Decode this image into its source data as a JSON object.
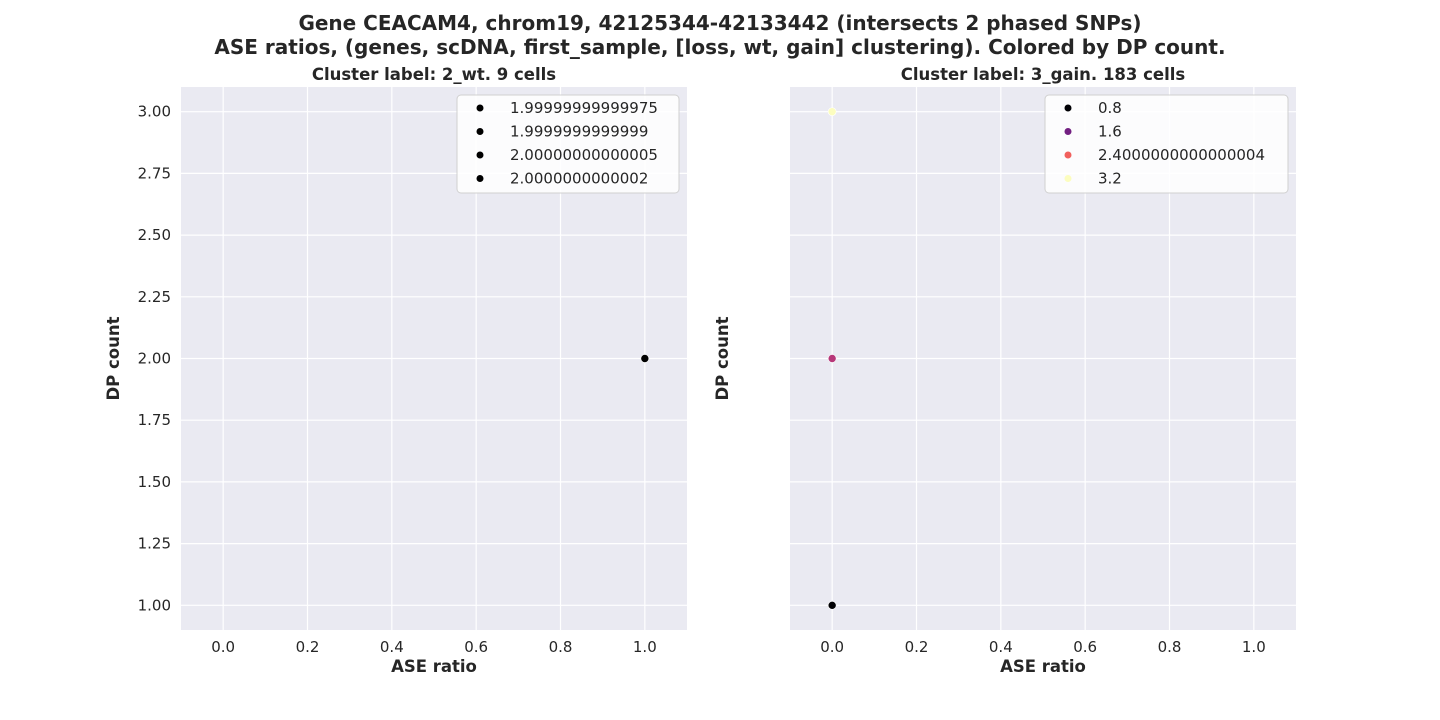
{
  "figure": {
    "title_line1": "Gene CEACAM4, chrom19, 42125344-42133442 (intersects 2 phased SNPs)",
    "title_line2": "ASE ratios, (genes, scDNA, first_sample, [loss, wt, gain] clustering). Colored by DP count."
  },
  "chart_data": [
    {
      "type": "scatter",
      "title": "Cluster label: 2_wt. 9 cells",
      "xlabel": "ASE ratio",
      "ylabel": "DP count",
      "xlim": [
        -0.1,
        1.1
      ],
      "ylim": [
        0.9,
        3.1
      ],
      "xticks": [
        "0.0",
        "0.2",
        "0.4",
        "0.6",
        "0.8",
        "1.0"
      ],
      "xtick_values": [
        0.0,
        0.2,
        0.4,
        0.6,
        0.8,
        1.0
      ],
      "yticks": [
        "1.00",
        "1.25",
        "1.50",
        "1.75",
        "2.00",
        "2.25",
        "2.50",
        "2.75",
        "3.00"
      ],
      "ytick_values": [
        1.0,
        1.25,
        1.5,
        1.75,
        2.0,
        2.25,
        2.5,
        2.75,
        3.0
      ],
      "grid": true,
      "legend_position": "top-right",
      "legend": [
        {
          "label": "1.99999999999975",
          "color": "#000000"
        },
        {
          "label": "1.9999999999999",
          "color": "#000000"
        },
        {
          "label": "2.00000000000005",
          "color": "#000000"
        },
        {
          "label": "2.0000000000002",
          "color": "#000000"
        }
      ],
      "points": [
        {
          "x": 1.0,
          "y": 2.0,
          "color": "#000000"
        }
      ]
    },
    {
      "type": "scatter",
      "title": "Cluster label: 3_gain. 183 cells",
      "xlabel": "ASE ratio",
      "ylabel": "DP count",
      "xlim": [
        -0.1,
        1.1
      ],
      "ylim": [
        0.9,
        3.1
      ],
      "xticks": [
        "0.0",
        "0.2",
        "0.4",
        "0.6",
        "0.8",
        "1.0"
      ],
      "xtick_values": [
        0.0,
        0.2,
        0.4,
        0.6,
        0.8,
        1.0
      ],
      "yticks": [],
      "ytick_values": [
        1.0,
        1.25,
        1.5,
        1.75,
        2.0,
        2.25,
        2.5,
        2.75,
        3.0
      ],
      "grid": true,
      "legend_position": "top-right",
      "legend": [
        {
          "label": "0.8",
          "color": "#000004"
        },
        {
          "label": "1.6",
          "color": "#721f81"
        },
        {
          "label": "2.4000000000000004",
          "color": "#f1605d"
        },
        {
          "label": "3.2",
          "color": "#fcfdbf"
        }
      ],
      "points": [
        {
          "x": 0.0,
          "y": 1.0,
          "color": "#000004"
        },
        {
          "x": 0.0,
          "y": 2.0,
          "color": "#b73779"
        },
        {
          "x": 0.0,
          "y": 3.0,
          "color": "#fcfdbf"
        }
      ]
    }
  ]
}
